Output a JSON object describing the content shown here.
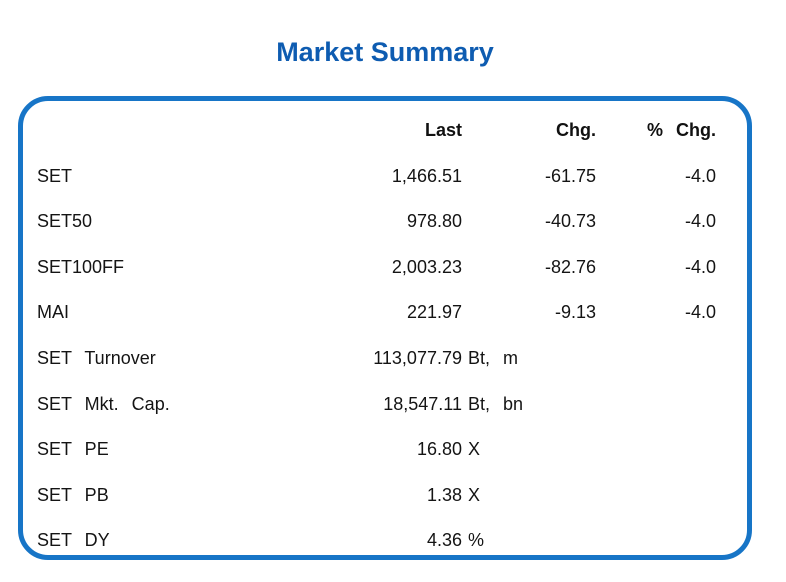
{
  "title": "Market Summary",
  "colors": {
    "title_blue": "#0e5cb1",
    "border_blue": "#1775c7",
    "text": "#141414"
  },
  "table": {
    "headers": {
      "last": "Last",
      "chg": "Chg.",
      "pct_chg": "% Chg."
    },
    "rows": [
      {
        "label": "SET",
        "last": "1,466.51",
        "unit": "",
        "chg": "-61.75",
        "pct_chg": "-4.0"
      },
      {
        "label": "SET50",
        "last": "978.80",
        "unit": "",
        "chg": "-40.73",
        "pct_chg": "-4.0"
      },
      {
        "label": "SET100FF",
        "last": "2,003.23",
        "unit": "",
        "chg": "-82.76",
        "pct_chg": "-4.0"
      },
      {
        "label": "MAI",
        "last": "221.97",
        "unit": "",
        "chg": "-9.13",
        "pct_chg": "-4.0"
      },
      {
        "label": "SET Turnover",
        "last": "113,077.79",
        "unit": "Bt, m",
        "chg": "",
        "pct_chg": ""
      },
      {
        "label": "SET Mkt. Cap.",
        "last": "18,547.11",
        "unit": "Bt, bn",
        "chg": "",
        "pct_chg": ""
      },
      {
        "label": "SET PE",
        "last": "16.80",
        "unit": "X",
        "chg": "",
        "pct_chg": ""
      },
      {
        "label": "SET PB",
        "last": "1.38",
        "unit": "X",
        "chg": "",
        "pct_chg": ""
      },
      {
        "label": "SET DY",
        "last": "4.36",
        "unit": "%",
        "chg": "",
        "pct_chg": ""
      }
    ]
  },
  "chart_data": {
    "type": "table",
    "title": "Market Summary",
    "columns": [
      "",
      "Last",
      "Chg.",
      "% Chg."
    ],
    "rows": [
      [
        "SET",
        "1,466.51",
        "-61.75",
        "-4.0"
      ],
      [
        "SET50",
        "978.80",
        "-40.73",
        "-4.0"
      ],
      [
        "SET100FF",
        "2,003.23",
        "-82.76",
        "-4.0"
      ],
      [
        "MAI",
        "221.97",
        "-9.13",
        "-4.0"
      ],
      [
        "SET Turnover",
        "113,077.79 Bt, m",
        "",
        ""
      ],
      [
        "SET Mkt. Cap.",
        "18,547.11 Bt, bn",
        "",
        ""
      ],
      [
        "SET PE",
        "16.80 X",
        "",
        ""
      ],
      [
        "SET PB",
        "1.38 X",
        "",
        ""
      ],
      [
        "SET DY",
        "4.36 %",
        "",
        ""
      ]
    ],
    "layout": {
      "border": "rounded-rect",
      "header_bold": true,
      "numeric_alignment": "right"
    }
  }
}
